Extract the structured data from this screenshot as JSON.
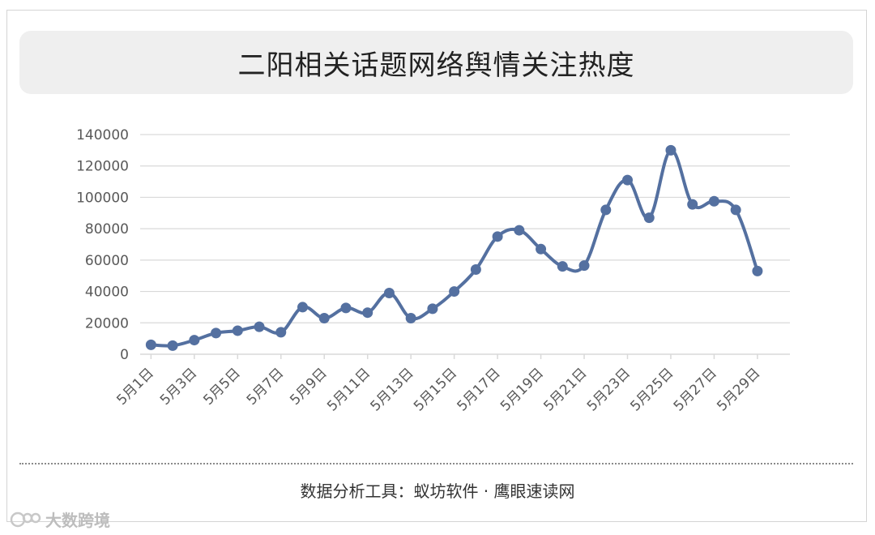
{
  "title": "二阳相关话题网络舆情关注热度",
  "footer": "数据分析工具：蚁坊软件 · 鹰眼速读网",
  "watermark": "大数跨境",
  "colors": {
    "line": "#5470a0",
    "grid": "#d9d9d9",
    "axis_text": "#595959"
  },
  "chart_data": {
    "type": "line",
    "title": "二阳相关话题网络舆情关注热度",
    "xlabel": "",
    "ylabel": "",
    "ylim": [
      0,
      140000
    ],
    "yticks": [
      0,
      20000,
      40000,
      60000,
      80000,
      100000,
      120000,
      140000
    ],
    "grid": true,
    "x": [
      "5月1日",
      "5月2日",
      "5月3日",
      "5月4日",
      "5月5日",
      "5月6日",
      "5月7日",
      "5月8日",
      "5月9日",
      "5月10日",
      "5月11日",
      "5月12日",
      "5月13日",
      "5月14日",
      "5月15日",
      "5月16日",
      "5月17日",
      "5月18日",
      "5月19日",
      "5月20日",
      "5月21日",
      "5月22日",
      "5月23日",
      "5月24日",
      "5月25日",
      "5月26日",
      "5月27日",
      "5月28日",
      "5月29日",
      "5月30日"
    ],
    "xtick_labels": [
      "5月1日",
      "5月3日",
      "5月5日",
      "5月7日",
      "5月9日",
      "5月11日",
      "5月13日",
      "5月15日",
      "5月17日",
      "5月19日",
      "5月21日",
      "5月23日",
      "5月25日",
      "5月27日",
      "5月29日"
    ],
    "values": [
      6000,
      5500,
      9000,
      13500,
      15000,
      17500,
      14000,
      30000,
      23000,
      29500,
      26500,
      39000,
      23000,
      29000,
      40000,
      54000,
      75000,
      79000,
      67000,
      56000,
      56500,
      92000,
      111000,
      87000,
      130000,
      95500,
      97500,
      92000,
      53000,
      null
    ]
  }
}
